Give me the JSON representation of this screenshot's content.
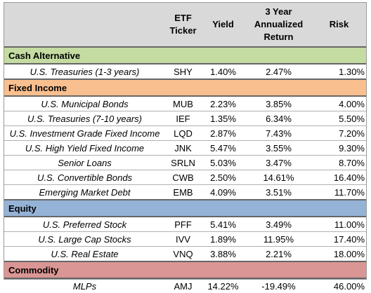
{
  "header": {
    "ticker": "ETF Ticker",
    "yield": "Yield",
    "return": "3 Year Annualized Return",
    "risk": "Risk"
  },
  "sections": [
    {
      "title": "Cash Alternative",
      "rows": [
        {
          "name": "U.S. Treasuries (1-3 years)",
          "ticker": "SHY",
          "yield": "1.40%",
          "return": "2.47%",
          "risk": "1.30%"
        }
      ]
    },
    {
      "title": "Fixed Income",
      "rows": [
        {
          "name": "U.S. Municipal Bonds",
          "ticker": "MUB",
          "yield": "2.23%",
          "return": "3.85%",
          "risk": "4.00%"
        },
        {
          "name": "U.S. Treasuries (7-10 years)",
          "ticker": "IEF",
          "yield": "1.35%",
          "return": "6.34%",
          "risk": "5.50%"
        },
        {
          "name": "U.S. Investment Grade Fixed Income",
          "ticker": "LQD",
          "yield": "2.87%",
          "return": "7.43%",
          "risk": "7.20%"
        },
        {
          "name": "U.S. High Yield Fixed Income",
          "ticker": "JNK",
          "yield": "5.47%",
          "return": "3.55%",
          "risk": "9.30%"
        },
        {
          "name": "Senior Loans",
          "ticker": "SRLN",
          "yield": "5.03%",
          "return": "3.47%",
          "risk": "8.70%"
        },
        {
          "name": "U.S. Convertible Bonds",
          "ticker": "CWB",
          "yield": "2.50%",
          "return": "14.61%",
          "risk": "16.40%"
        },
        {
          "name": "Emerging Market Debt",
          "ticker": "EMB",
          "yield": "4.09%",
          "return": "3.51%",
          "risk": "11.70%"
        }
      ]
    },
    {
      "title": "Equity",
      "rows": [
        {
          "name": "U.S. Preferred Stock",
          "ticker": "PFF",
          "yield": "5.41%",
          "return": "3.49%",
          "risk": "11.00%"
        },
        {
          "name": "U.S. Large Cap Stocks",
          "ticker": "IVV",
          "yield": "1.89%",
          "return": "11.95%",
          "risk": "17.40%"
        },
        {
          "name": "U.S. Real Estate",
          "ticker": "VNQ",
          "yield": "3.88%",
          "return": "2.21%",
          "risk": "18.00%"
        }
      ]
    },
    {
      "title": "Commodity",
      "rows": [
        {
          "name": "MLPs",
          "ticker": "AMJ",
          "yield": "14.22%",
          "return": "-19.49%",
          "risk": "46.00%"
        }
      ]
    }
  ]
}
